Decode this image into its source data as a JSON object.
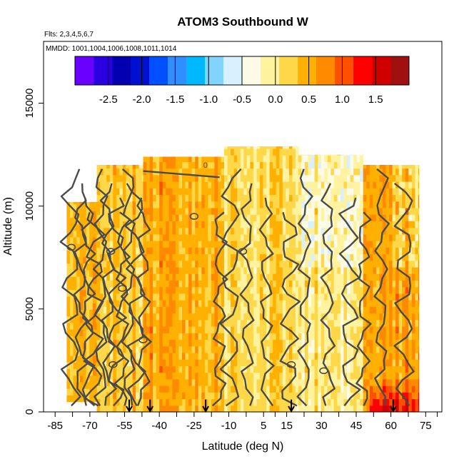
{
  "chart_data": {
    "type": "heatmap",
    "title": "ATOM3 Southbound W",
    "subtitle_flights": "Flts: 2,3,4,5,6,7",
    "subtitle_dates": "MMDD: 1001,1004,1006,1008,1011,1014",
    "xlabel": "Latitude (deg N)",
    "ylabel": "Altitude (m)",
    "xlim": [
      -90,
      82
    ],
    "ylim": [
      0,
      18000
    ],
    "x_ticks": [
      -85,
      -70,
      -55,
      -40,
      -25,
      -10,
      5,
      15,
      30,
      45,
      60,
      75
    ],
    "x_minor_ticks": [
      -77.5,
      -62.5,
      -47.5,
      -32.5,
      -17.5,
      -2.5,
      10,
      22.5,
      37.5,
      52.5,
      67.5,
      80
    ],
    "y_ticks": [
      0,
      5000,
      10000,
      15000
    ],
    "colorbar": {
      "range": [
        -3.0,
        2.0
      ],
      "ticks": [
        "-2.5",
        "-2.0",
        "-1.5",
        "-1.0",
        "-0.5",
        "0.0",
        "0.5",
        "1.0",
        "1.5"
      ],
      "tick_values": [
        -2.5,
        -2.0,
        -1.5,
        -1.0,
        -0.5,
        0.0,
        0.5,
        1.0,
        1.5
      ],
      "colors": [
        "#6a00ff",
        "#2a00e0",
        "#0000b0",
        "#0010d0",
        "#0050ff",
        "#2f8fff",
        "#00b8ff",
        "#80d4ff",
        "#d8f0ff",
        "#fbfbe6",
        "#fff3a0",
        "#ffd84a",
        "#ffb000",
        "#ff8a00",
        "#ff5000",
        "#ff0000",
        "#d00000",
        "#a01010"
      ]
    },
    "contour_levels": [
      0
    ],
    "contour_label": "0",
    "profile_markers_lat": [
      -53,
      -44,
      -20,
      17,
      61
    ],
    "w_field_columns": [
      {
        "lat_range": [
          -80,
          -67
        ],
        "alt_range": [
          500,
          10200
        ],
        "mean_w": 0.45
      },
      {
        "lat_range": [
          -67,
          -47
        ],
        "alt_range": [
          0,
          12000
        ],
        "mean_w": 0.35
      },
      {
        "lat_range": [
          -47,
          -12
        ],
        "alt_range": [
          0,
          12400
        ],
        "mean_w": 0.55
      },
      {
        "lat_range": [
          -12,
          20
        ],
        "alt_range": [
          0,
          12900
        ],
        "mean_w": 0.15
      },
      {
        "lat_range": [
          20,
          48
        ],
        "alt_range": [
          0,
          12500
        ],
        "mean_w": 0.05
      },
      {
        "lat_range": [
          48,
          72
        ],
        "alt_range": [
          0,
          12000
        ],
        "mean_w": 0.55
      }
    ]
  }
}
